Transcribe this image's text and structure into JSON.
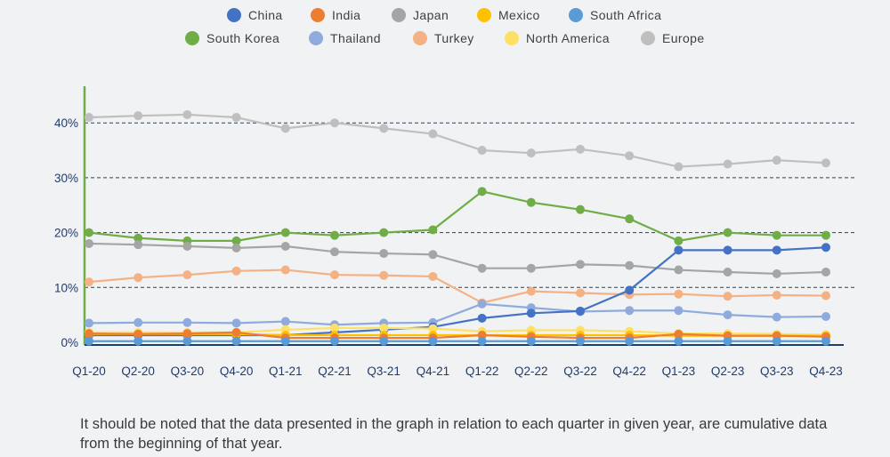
{
  "chart_data": {
    "type": "line",
    "categories": [
      "Q1-20",
      "Q2-20",
      "Q3-20",
      "Q4-20",
      "Q1-21",
      "Q2-21",
      "Q3-21",
      "Q4-21",
      "Q1-22",
      "Q2-22",
      "Q3-22",
      "Q4-22",
      "Q1-23",
      "Q2-23",
      "Q3-23",
      "Q4-23"
    ],
    "y_ticks": [
      "0%",
      "10%",
      "20%",
      "30%",
      "40%"
    ],
    "ylim": [
      0,
      45
    ],
    "grid": "horizontal dashed",
    "legend_position": "top",
    "series": [
      {
        "name": "Europe",
        "color": "#bfbfbf",
        "values": [
          41,
          41.3,
          41.5,
          41,
          39,
          40,
          39,
          38,
          35,
          34.5,
          35.2,
          34,
          32,
          32.5,
          33.2,
          32.7
        ]
      },
      {
        "name": "South Korea",
        "color": "#70ad47",
        "values": [
          20,
          19,
          18.5,
          18.5,
          20,
          19.5,
          20,
          20.5,
          27.5,
          25.5,
          24.2,
          22.5,
          18.5,
          20,
          19.5,
          19.5
        ]
      },
      {
        "name": "Japan",
        "color": "#a5a5a5",
        "values": [
          18,
          17.8,
          17.5,
          17.2,
          17.5,
          16.5,
          16.2,
          16,
          13.5,
          13.5,
          14.2,
          14,
          13.2,
          12.8,
          12.5,
          12.8
        ]
      },
      {
        "name": "Turkey",
        "color": "#f4b183",
        "values": [
          11,
          11.8,
          12.3,
          13,
          13.2,
          12.3,
          12.2,
          12,
          7.2,
          9.3,
          9,
          8.7,
          8.8,
          8.4,
          8.6,
          8.5
        ]
      },
      {
        "name": "Thailand",
        "color": "#8faadc",
        "values": [
          3.5,
          3.6,
          3.6,
          3.5,
          3.8,
          3.2,
          3.5,
          3.6,
          7,
          6.3,
          5.6,
          5.8,
          5.8,
          5,
          4.6,
          4.7
        ]
      },
      {
        "name": "China",
        "color": "#4472c4",
        "values": [
          1.3,
          1.3,
          1.3,
          1.3,
          1.3,
          1.8,
          2.3,
          2.8,
          4.4,
          5.3,
          5.7,
          9.5,
          16.8,
          16.8,
          16.8,
          17.3
        ]
      },
      {
        "name": "North America",
        "color": "#ffe066",
        "values": [
          1.8,
          1.8,
          1.8,
          1.8,
          2.3,
          2.6,
          2.6,
          2.5,
          2,
          2.2,
          2.2,
          2,
          1.6,
          1.6,
          1.5,
          1.4
        ]
      },
      {
        "name": "Mexico",
        "color": "#ffc000",
        "values": [
          1.5,
          1.5,
          1.5,
          1.5,
          1.3,
          1.3,
          1.3,
          1.3,
          1.3,
          1.3,
          1.3,
          1.3,
          1.2,
          1.2,
          1.2,
          1.2
        ]
      },
      {
        "name": "India",
        "color": "#ed7d31",
        "values": [
          1.6,
          1.5,
          1.6,
          1.8,
          0.8,
          0.8,
          0.8,
          0.8,
          1.3,
          1,
          0.8,
          0.8,
          1.5,
          1.2,
          1.2,
          1
        ]
      },
      {
        "name": "South Africa",
        "color": "#5b9bd5",
        "values": [
          0.2,
          0.2,
          0.2,
          0.2,
          0.2,
          0.2,
          0.2,
          0.2,
          0.2,
          0.2,
          0.2,
          0.2,
          0.2,
          0.2,
          0.2,
          0.2
        ]
      }
    ]
  },
  "legend": [
    {
      "name": "China",
      "color": "#4472c4"
    },
    {
      "name": "India",
      "color": "#ed7d31"
    },
    {
      "name": "Japan",
      "color": "#a5a5a5"
    },
    {
      "name": "Mexico",
      "color": "#ffc000"
    },
    {
      "name": "South Africa",
      "color": "#5b9bd5"
    },
    {
      "name": "South Korea",
      "color": "#70ad47"
    },
    {
      "name": "Thailand",
      "color": "#8faadc"
    },
    {
      "name": "Turkey",
      "color": "#f4b183"
    },
    {
      "name": "North America",
      "color": "#ffe066"
    },
    {
      "name": "Europe",
      "color": "#bfbfbf"
    }
  ],
  "note": "It should be noted that the data presented in the graph in relation to each quarter in given year, are cumulative data from the beginning of that year.",
  "colors": {
    "axis_left": "#70ad47",
    "axis_bottom": "#1f3c6e",
    "grid": "#2e3f5c",
    "tick_text": "#1f3c6e"
  }
}
